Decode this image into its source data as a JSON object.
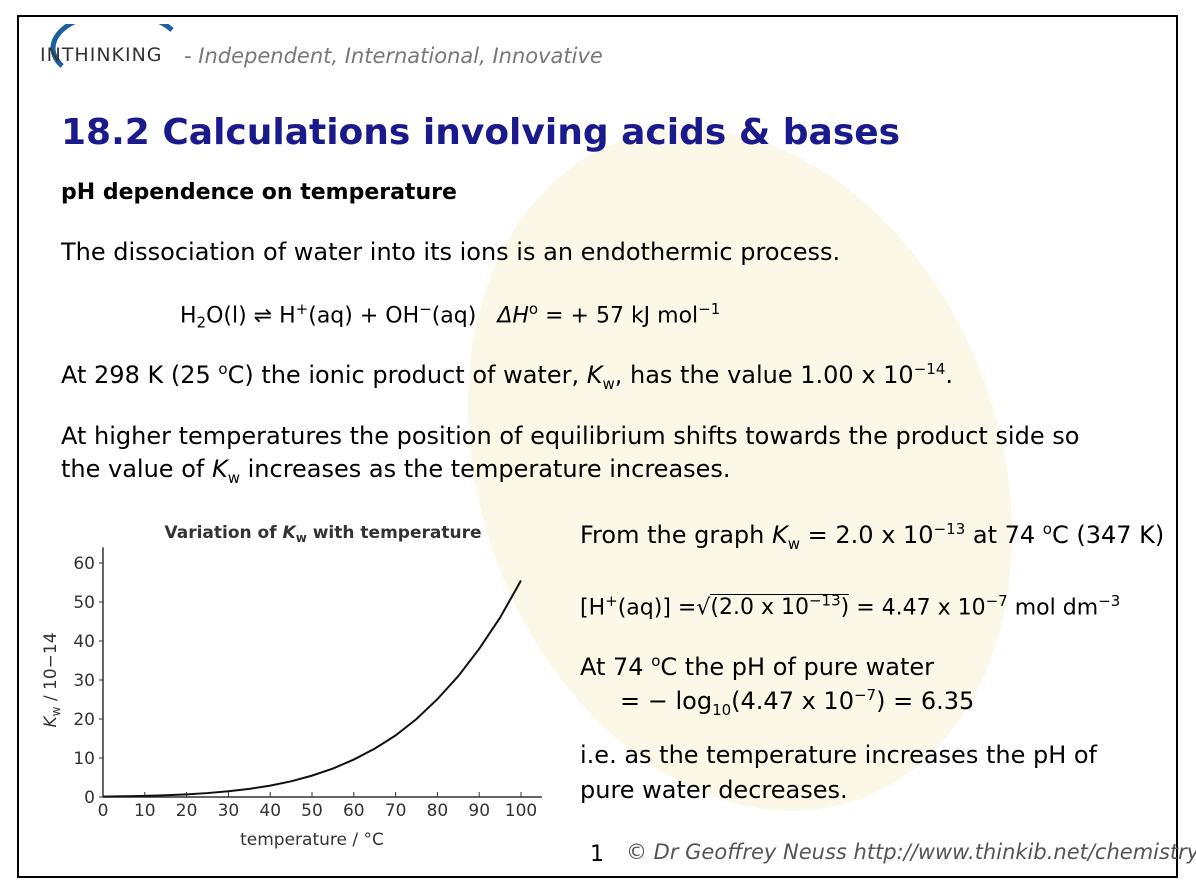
{
  "header": {
    "logo": "INTHINKING",
    "tagline": "- Independent, International, Innovative"
  },
  "title": "18.2 Calculations involving acids & bases",
  "subtitle": "pH dependence on temperature",
  "intro": "The dissociation of water into its ions is an endothermic process.",
  "equation": [
    "H",
    "2",
    "O(l) ⇌ H",
    "+",
    "(aq) + OH",
    "−",
    "(aq)",
    "ΔH",
    "o",
    " = + 57 kJ mol",
    "−1"
  ],
  "kw_value": [
    "At 298 K (25 ",
    "o",
    "C) the ionic product of water, ",
    "K",
    "w",
    ", has the value 1.00 x 10",
    "−14",
    "."
  ],
  "higher_temp": [
    "At higher temperatures the position of equilibrium shifts towards the product side so the value of ",
    "K",
    "w",
    " increases as the temperature increases."
  ],
  "from_graph": [
    "From the graph ",
    "K",
    "w",
    " = 2.0 x 10",
    "−13",
    " at 74 ",
    "o",
    "C (347 K)"
  ],
  "h_conc": [
    "[H",
    "+",
    "(aq)] =",
    "√",
    "(2.0 x 10",
    "−13",
    ")",
    " = 4.47 x 10",
    "−7",
    " mol dm",
    "−3"
  ],
  "ph_line1": [
    "At 74 ",
    "o",
    "C the pH of pure water"
  ],
  "ph_line2": [
    "= − log",
    "10",
    "(4.47 x 10",
    "−7",
    ") = 6.35"
  ],
  "conclusion": "i.e. as the temperature increases the pH of pure water decreases.",
  "footer": {
    "page": "1",
    "credit": "© Dr Geoffrey Neuss http://www.thinkib.net/chemistry"
  },
  "chart_data": {
    "type": "line",
    "title": [
      "Variation of ",
      "K",
      "w",
      " with temperature"
    ],
    "x_label": "temperature / °C",
    "y_label": [
      "K",
      "w",
      " / 10−14"
    ],
    "x": [
      0,
      5,
      10,
      15,
      20,
      25,
      30,
      35,
      40,
      45,
      50,
      55,
      60,
      65,
      70,
      75,
      80,
      85,
      90,
      95,
      100
    ],
    "values": [
      0.11,
      0.18,
      0.29,
      0.45,
      0.68,
      1.01,
      1.47,
      2.09,
      2.92,
      4.02,
      5.48,
      7.3,
      9.6,
      12.4,
      15.8,
      20,
      25.1,
      31,
      38,
      46,
      55.5
    ],
    "color": "#111111",
    "xlim": [
      0,
      105
    ],
    "ylim": [
      0,
      64
    ],
    "xticks": [
      0,
      10,
      20,
      30,
      40,
      50,
      60,
      70,
      80,
      90,
      100
    ],
    "yticks": [
      0,
      10,
      20,
      30,
      40,
      50,
      60
    ]
  }
}
